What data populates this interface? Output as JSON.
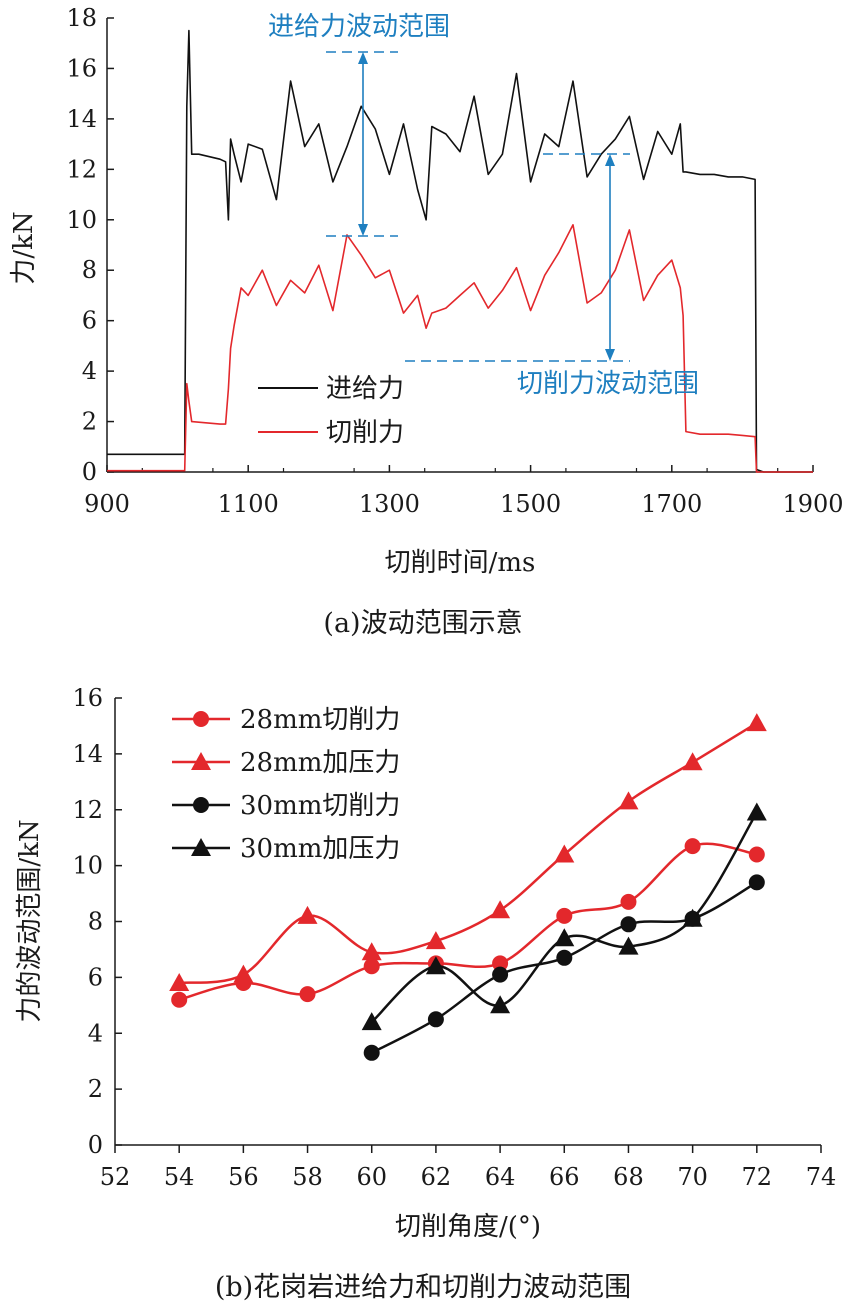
{
  "chart_data": [
    {
      "type": "line",
      "caption": "(a)波动范围示意",
      "xlabel": "切削时间/ms",
      "ylabel": "力/kN",
      "xlim": [
        900,
        1900
      ],
      "ylim": [
        0,
        18
      ],
      "xticks": [
        "900",
        "1100",
        "1300",
        "1500",
        "1700",
        "1900"
      ],
      "yticks": [
        "0",
        "2",
        "4",
        "6",
        "8",
        "10",
        "12",
        "14",
        "16",
        "18"
      ],
      "legend_position": "lower-left",
      "series": [
        {
          "name": "进给力",
          "color": "#111111",
          "x": [
            900,
            1010,
            1013,
            1016,
            1020,
            1030,
            1045,
            1060,
            1068,
            1072,
            1075,
            1080,
            1090,
            1100,
            1120,
            1140,
            1160,
            1180,
            1200,
            1220,
            1240,
            1260,
            1280,
            1300,
            1320,
            1340,
            1352,
            1360,
            1380,
            1400,
            1420,
            1440,
            1460,
            1480,
            1500,
            1520,
            1540,
            1560,
            1580,
            1600,
            1620,
            1640,
            1660,
            1680,
            1700,
            1712,
            1716,
            1720,
            1740,
            1760,
            1780,
            1800,
            1818,
            1820,
            1830,
            1900
          ],
          "y": [
            0.7,
            0.7,
            14.5,
            17.5,
            12.6,
            12.6,
            12.5,
            12.4,
            12.3,
            10.0,
            13.2,
            12.6,
            11.5,
            13.0,
            12.8,
            10.8,
            15.5,
            12.9,
            13.8,
            11.5,
            12.9,
            14.5,
            13.6,
            11.8,
            13.8,
            11.2,
            10.0,
            13.7,
            13.4,
            12.7,
            14.9,
            11.8,
            12.6,
            15.8,
            11.5,
            13.4,
            12.9,
            15.5,
            11.7,
            12.6,
            13.2,
            14.1,
            11.6,
            13.5,
            12.6,
            13.8,
            11.9,
            11.9,
            11.8,
            11.8,
            11.7,
            11.7,
            11.6,
            0.1,
            0.0,
            0.0
          ]
        },
        {
          "name": "切削力",
          "color": "#e3282c",
          "x": [
            900,
            1010,
            1013,
            1016,
            1020,
            1040,
            1060,
            1068,
            1072,
            1075,
            1080,
            1090,
            1100,
            1120,
            1140,
            1160,
            1180,
            1200,
            1220,
            1240,
            1260,
            1280,
            1300,
            1320,
            1340,
            1352,
            1360,
            1380,
            1400,
            1420,
            1440,
            1460,
            1480,
            1500,
            1520,
            1540,
            1560,
            1580,
            1600,
            1620,
            1640,
            1660,
            1680,
            1700,
            1712,
            1716,
            1720,
            1740,
            1760,
            1780,
            1800,
            1818,
            1820,
            1830,
            1900
          ],
          "y": [
            0.05,
            0.05,
            3.5,
            2.8,
            2.0,
            1.95,
            1.9,
            1.9,
            3.3,
            4.9,
            5.8,
            7.3,
            7.0,
            8.0,
            6.6,
            7.6,
            7.1,
            8.2,
            6.4,
            9.4,
            8.6,
            7.7,
            8.0,
            6.3,
            7.0,
            5.7,
            6.3,
            6.5,
            7.0,
            7.5,
            6.5,
            7.2,
            8.1,
            6.4,
            7.8,
            8.7,
            9.8,
            6.7,
            7.1,
            8.0,
            9.6,
            6.8,
            7.8,
            8.4,
            7.3,
            6.2,
            1.6,
            1.5,
            1.5,
            1.5,
            1.45,
            1.4,
            0.0,
            0.0,
            0.0
          ]
        }
      ],
      "annotations": [
        "进给力波动范围",
        "切削力波动范围"
      ]
    },
    {
      "type": "line",
      "caption": "(b)花岗岩进给力和切削力波动范围",
      "xlabel": "切削角度/(°)",
      "ylabel": "力的波动范围/kN",
      "xlim": [
        52,
        74
      ],
      "ylim": [
        0,
        16
      ],
      "xticks": [
        "52",
        "54",
        "56",
        "58",
        "60",
        "62",
        "64",
        "66",
        "68",
        "70",
        "72",
        "74"
      ],
      "yticks": [
        "0",
        "2",
        "4",
        "6",
        "8",
        "10",
        "12",
        "14",
        "16"
      ],
      "legend_position": "top-left",
      "series": [
        {
          "name": "28mm切削力",
          "color": "#e3282c",
          "marker": "circle",
          "x": [
            54,
            56,
            58,
            60,
            62,
            64,
            66,
            68,
            70,
            72
          ],
          "values": [
            5.2,
            5.8,
            5.4,
            6.4,
            6.5,
            6.5,
            8.2,
            8.7,
            10.7,
            10.4
          ]
        },
        {
          "name": "28mm加压力",
          "color": "#e3282c",
          "marker": "triangle",
          "x": [
            54,
            56,
            58,
            60,
            62,
            64,
            66,
            68,
            70,
            72
          ],
          "values": [
            5.8,
            6.1,
            8.2,
            6.9,
            7.3,
            8.4,
            10.4,
            12.3,
            13.7,
            15.1
          ]
        },
        {
          "name": "30mm切削力",
          "color": "#111111",
          "marker": "circle",
          "x": [
            60,
            62,
            64,
            66,
            68,
            70,
            72
          ],
          "values": [
            3.3,
            4.5,
            6.1,
            6.7,
            7.9,
            8.1,
            9.4
          ]
        },
        {
          "name": "30mm加压力",
          "color": "#111111",
          "marker": "triangle",
          "x": [
            60,
            62,
            64,
            66,
            68,
            70,
            72
          ],
          "values": [
            4.4,
            6.4,
            5.0,
            7.4,
            7.1,
            8.1,
            11.9
          ]
        }
      ]
    }
  ]
}
